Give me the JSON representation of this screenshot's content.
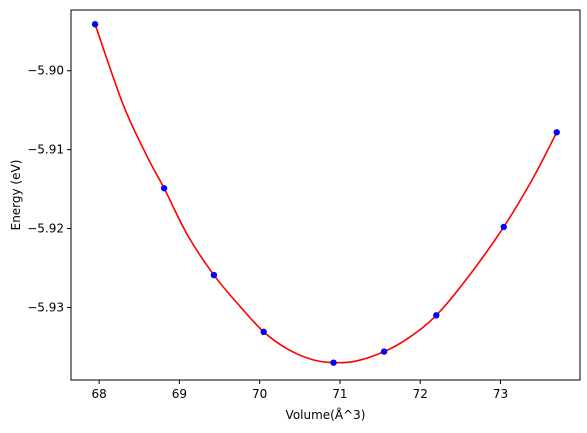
{
  "chart_data": {
    "type": "line",
    "title": "",
    "xlabel": "Volume(Å^3)",
    "ylabel": "Energy (eV)",
    "xlim": [
      67.65,
      73.99
    ],
    "ylim": [
      -5.9392,
      -5.8923
    ],
    "grid": false,
    "x_ticks": [
      68,
      69,
      70,
      71,
      72,
      73
    ],
    "y_ticks": [
      -5.93,
      -5.92,
      -5.91,
      -5.9
    ],
    "x_tick_labels": [
      "68",
      "69",
      "70",
      "71",
      "72",
      "73"
    ],
    "y_tick_labels": [
      "−5.93",
      "−5.92",
      "−5.91",
      "−5.90"
    ],
    "series": [
      {
        "kind": "fit-curve",
        "color": "#ff0000",
        "x": [
          67.95,
          68.3,
          68.6,
          68.81,
          69.1,
          69.43,
          69.75,
          70.05,
          70.35,
          70.65,
          70.92,
          71.2,
          71.55,
          71.85,
          72.2,
          72.6,
          73.04,
          73.4,
          73.7
        ],
        "y": [
          -5.8941,
          -5.9043,
          -5.9109,
          -5.9149,
          -5.9208,
          -5.9259,
          -5.9298,
          -5.9331,
          -5.9353,
          -5.9366,
          -5.937,
          -5.9368,
          -5.9356,
          -5.9339,
          -5.931,
          -5.9261,
          -5.9198,
          -5.9137,
          -5.9078
        ]
      },
      {
        "kind": "data-points",
        "color": "#0000ff",
        "x": [
          67.95,
          68.81,
          69.43,
          70.05,
          70.92,
          71.55,
          72.2,
          73.04,
          73.7
        ],
        "y": [
          -5.8941,
          -5.9149,
          -5.9259,
          -5.9331,
          -5.937,
          -5.9356,
          -5.931,
          -5.9198,
          -5.9078
        ]
      }
    ]
  }
}
